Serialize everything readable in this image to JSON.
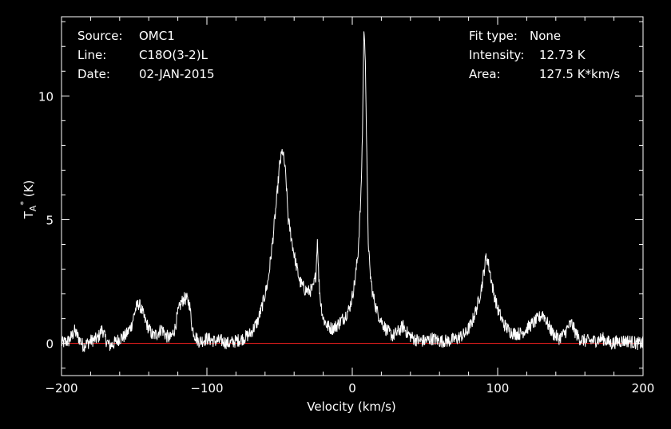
{
  "info": {
    "left": [
      {
        "label": "Source:",
        "value": "OMC1"
      },
      {
        "label": "Line:",
        "value": "C18O(3-2)L"
      },
      {
        "label": "Date:",
        "value": "02-JAN-2015"
      }
    ],
    "right": [
      {
        "label": "Fit type:",
        "value": "None"
      },
      {
        "label": "Intensity:",
        "value": "12.73 K"
      },
      {
        "label": "Area:",
        "value": "127.5 K*km/s"
      }
    ]
  },
  "colors": {
    "background": "#000000",
    "spectrum": "#ffffff",
    "baseline": "#ff2020",
    "axes": "#ffffff"
  },
  "chart_data": {
    "type": "line",
    "xlabel": "Velocity (km/s)",
    "ylabel_main": "T",
    "ylabel_sub": "A",
    "ylabel_sup": "*",
    "ylabel_unit": "(K)",
    "xlim": [
      -200,
      200
    ],
    "ylim": [
      -1.3,
      13.2
    ],
    "xticks": [
      -200,
      -100,
      0,
      100,
      200
    ],
    "yticks": [
      0,
      5,
      10
    ],
    "baseline_y": 0,
    "grid": false,
    "series": [
      {
        "x": [
          -200,
          -195,
          -191,
          -188,
          -185,
          -180,
          -175,
          -172,
          -170,
          -167,
          -164,
          -160,
          -156,
          -152,
          -149,
          -147,
          -145,
          -143,
          -140,
          -137,
          -134,
          -131,
          -128,
          -125,
          -122,
          -120,
          -118,
          -116,
          -114,
          -112,
          -110,
          -108,
          -106,
          -104,
          -100,
          -95,
          -90,
          -85,
          -80,
          -75,
          -70,
          -65,
          -62,
          -58,
          -55,
          -52,
          -50,
          -48,
          -46,
          -45,
          -44,
          -42,
          -40,
          -38,
          -36,
          -33,
          -30,
          -27,
          -25,
          -24,
          -23,
          -22,
          -20,
          -17,
          -14,
          -11,
          -8,
          -5,
          -2,
          0,
          2,
          4,
          6,
          7,
          8,
          9,
          10,
          11,
          12,
          14,
          17,
          20,
          24,
          28,
          32,
          35,
          38,
          42,
          46,
          50,
          55,
          60,
          66,
          72,
          78,
          82,
          86,
          89,
          91,
          92,
          93,
          95,
          97,
          100,
          104,
          108,
          112,
          116,
          120,
          124,
          128,
          131,
          133,
          135,
          138,
          142,
          146,
          149,
          151,
          153,
          156,
          160,
          166,
          172,
          178,
          184,
          190,
          196,
          200
        ],
        "y": [
          0.0,
          0.1,
          0.5,
          0.2,
          -0.1,
          0.1,
          0.2,
          0.6,
          0.2,
          -0.1,
          0.0,
          0.2,
          0.3,
          0.7,
          1.4,
          1.6,
          1.4,
          1.0,
          0.6,
          0.3,
          0.4,
          0.6,
          0.3,
          0.2,
          0.6,
          1.2,
          1.6,
          1.8,
          1.8,
          1.6,
          0.6,
          0.3,
          0.1,
          0.1,
          0.2,
          0.1,
          0.1,
          0.0,
          0.1,
          0.2,
          0.4,
          0.9,
          1.5,
          2.5,
          4.0,
          5.8,
          7.2,
          7.8,
          7.0,
          6.0,
          5.0,
          4.3,
          3.6,
          3.0,
          2.5,
          2.2,
          2.1,
          2.2,
          2.8,
          4.2,
          2.6,
          1.8,
          1.0,
          0.7,
          0.6,
          0.7,
          0.9,
          1.1,
          1.4,
          1.9,
          2.6,
          3.7,
          6.0,
          8.5,
          12.7,
          11.5,
          7.5,
          4.2,
          3.0,
          2.0,
          1.3,
          0.9,
          0.5,
          0.3,
          0.5,
          0.7,
          0.4,
          0.2,
          0.1,
          0.1,
          0.2,
          0.1,
          0.1,
          0.2,
          0.4,
          0.8,
          1.5,
          2.3,
          3.1,
          3.5,
          3.4,
          2.8,
          2.1,
          1.4,
          0.8,
          0.5,
          0.4,
          0.4,
          0.6,
          0.8,
          1.0,
          1.2,
          1.0,
          0.7,
          0.4,
          0.2,
          0.4,
          0.7,
          0.8,
          0.5,
          0.2,
          0.1,
          0.1,
          0.2,
          0.0,
          0.1,
          0.1,
          0.0,
          0.0
        ]
      }
    ]
  }
}
